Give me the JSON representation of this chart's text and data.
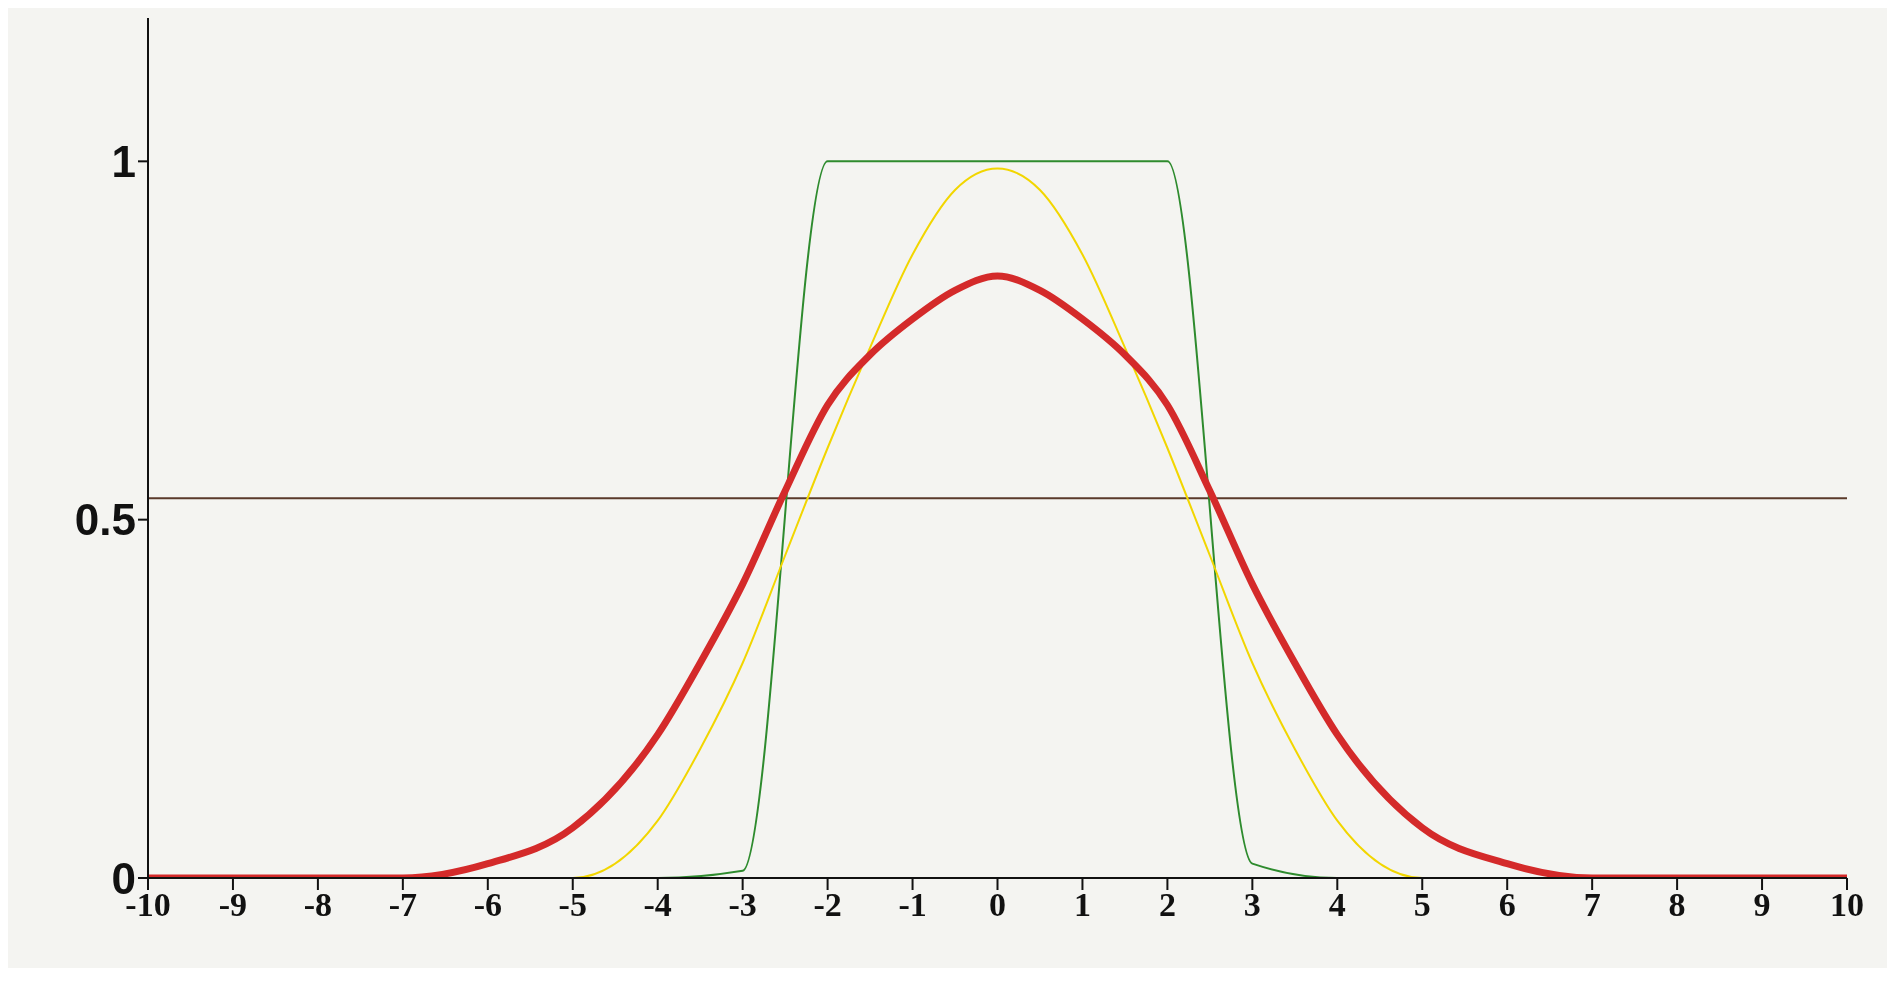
{
  "chart_data": {
    "type": "line",
    "xlim": [
      -10,
      10
    ],
    "xticks": [
      -10,
      -9,
      -8,
      -7,
      -6,
      -5,
      -4,
      -3,
      -2,
      -1,
      0,
      1,
      2,
      3,
      4,
      5,
      6,
      7,
      8,
      9,
      10
    ],
    "ylim": [
      0,
      1.2
    ],
    "yticks": [
      0,
      0.5,
      1
    ],
    "grid": false,
    "marker": "none",
    "line_style": "solid",
    "ref_lines": [
      {
        "axis": "y",
        "value": 0.53,
        "color": "#5a3a2a"
      }
    ],
    "series": [
      {
        "color": "#2e8b2e",
        "x": [
          -6,
          -5,
          -4,
          -3,
          -2,
          2,
          3,
          4,
          5,
          6
        ],
        "values": [
          0,
          0,
          0,
          0.01,
          1,
          1,
          0.02,
          0,
          0,
          0
        ]
      },
      {
        "color": "#f2d600",
        "x": [
          -6,
          -5,
          -4,
          -3.5,
          -3,
          -2.5,
          -2,
          -1.5,
          -1,
          -0.5,
          0,
          0.5,
          1,
          1.5,
          2,
          2.5,
          3,
          3.5,
          4,
          5,
          6
        ],
        "values": [
          0,
          0,
          0.08,
          0.18,
          0.3,
          0.45,
          0.6,
          0.74,
          0.87,
          0.96,
          0.99,
          0.96,
          0.87,
          0.74,
          0.6,
          0.45,
          0.3,
          0.18,
          0.08,
          0,
          0
        ]
      },
      {
        "color": "#d42a2a",
        "x": [
          -10,
          -9,
          -8,
          -7,
          -6,
          -5,
          -4,
          -3.5,
          -3,
          -2.5,
          -2,
          -1.5,
          -1,
          -0.5,
          0,
          0.5,
          1,
          1.5,
          2,
          2.5,
          3,
          3.5,
          4,
          5,
          6,
          7,
          8,
          9,
          10
        ],
        "values": [
          0,
          0,
          0,
          0,
          0.02,
          0.07,
          0.2,
          0.3,
          0.41,
          0.54,
          0.66,
          0.73,
          0.78,
          0.82,
          0.84,
          0.82,
          0.78,
          0.73,
          0.66,
          0.54,
          0.41,
          0.3,
          0.2,
          0.07,
          0.02,
          0,
          0,
          0,
          0
        ]
      }
    ]
  }
}
